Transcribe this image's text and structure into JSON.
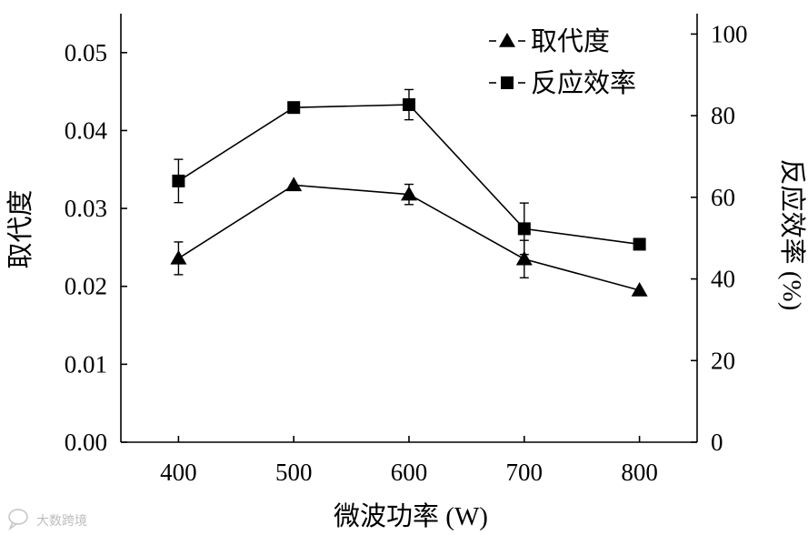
{
  "chart_data": {
    "type": "line",
    "xlabel": "微波功率 (W)",
    "ylabel_left": "取代度",
    "ylabel_right": "反应效率 (%)",
    "x": [
      400,
      500,
      600,
      700,
      800
    ],
    "xlim": [
      350,
      850
    ],
    "ylim_left": [
      0,
      0.055
    ],
    "ylim_right": [
      0,
      105
    ],
    "x_ticks": [
      "400",
      "500",
      "600",
      "700",
      "800"
    ],
    "y_left_ticks": [
      "0.00",
      "0.01",
      "0.02",
      "0.03",
      "0.04",
      "0.05"
    ],
    "y_right_ticks": [
      "0",
      "20",
      "40",
      "60",
      "80",
      "100"
    ],
    "grid": false,
    "legend_position": "top-right",
    "series": [
      {
        "name": "取代度",
        "axis": "left",
        "marker": "triangle",
        "values": [
          0.0236,
          0.033,
          0.0318,
          0.0235,
          0.0195
        ],
        "error": [
          0.0021,
          0.0,
          0.0013,
          0.0024,
          0.0
        ]
      },
      {
        "name": "反应效率",
        "axis": "right",
        "marker": "square",
        "values": [
          64.0,
          82.0,
          82.7,
          52.3,
          48.5
        ],
        "error": [
          5.3,
          0.0,
          3.7,
          6.3,
          0.0
        ]
      }
    ]
  },
  "watermark": {
    "text": "大数跨境",
    "icon": "speech-bubble-logo-icon"
  }
}
